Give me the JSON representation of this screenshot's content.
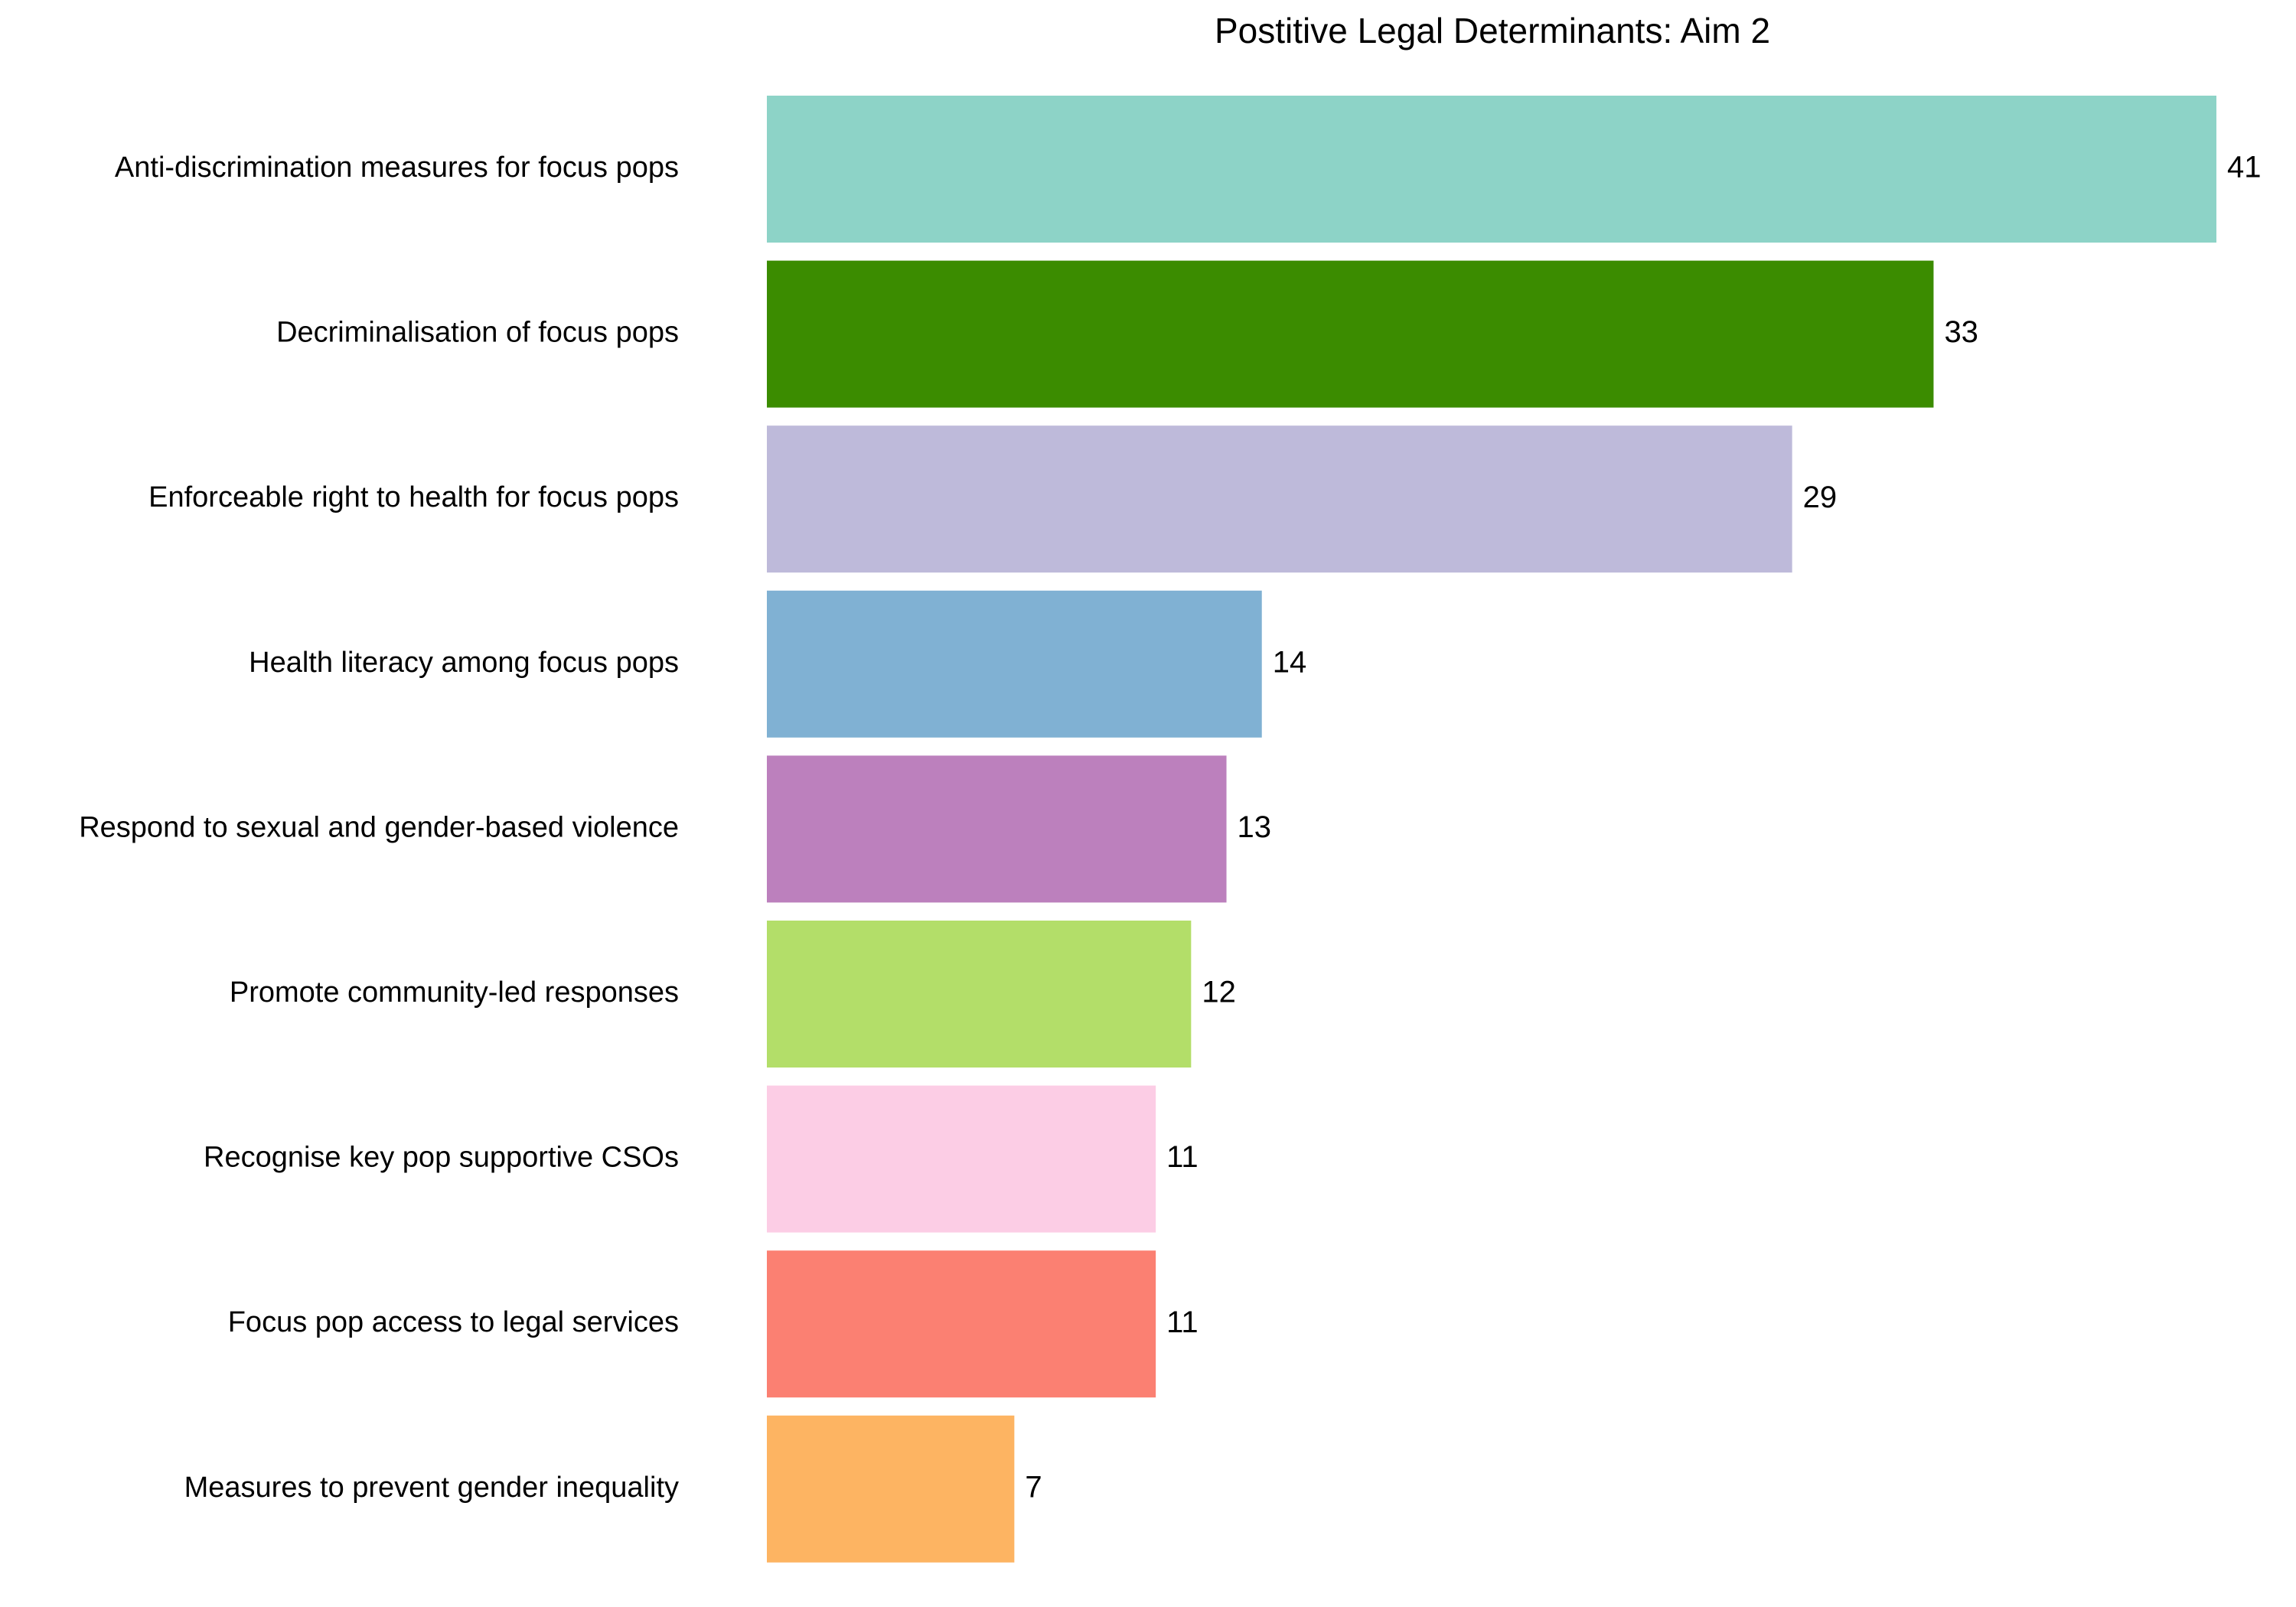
{
  "chart_data": {
    "type": "barh",
    "title": "Postitive Legal Determinants: Aim 2",
    "categories": [
      "Anti-discrimination measures for focus pops",
      "Decriminalisation of focus pops",
      "Enforceable right to health for focus pops",
      "Health literacy among focus pops",
      "Respond to sexual and gender-based violence",
      "Promote community-led responses",
      "Recognise key pop supportive CSOs",
      "Focus pop access to legal services",
      "Measures to prevent gender inequality"
    ],
    "values": [
      41,
      33,
      29,
      14,
      13,
      12,
      11,
      11,
      7
    ],
    "colors": [
      "#8dd3c7",
      "#3b8c00",
      "#bebada",
      "#80b1d3",
      "#bc80bd",
      "#b3de69",
      "#fccde5",
      "#fb8072",
      "#fdb462"
    ]
  }
}
